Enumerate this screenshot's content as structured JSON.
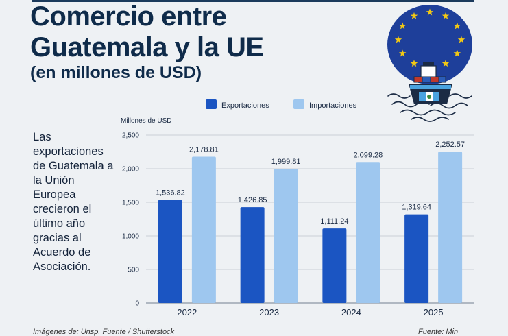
{
  "header": {
    "title_line1": "Comercio entre",
    "title_line2": "Guatemala y la UE",
    "subtitle": "(en millones de USD)"
  },
  "side_note": "Las exportaciones de Guatemala a la Unión Europea crecieron el último año gracias al Acuerdo de Asociación.",
  "footer": {
    "left": "Imágenes de: Unsp. Fuente / Shutterstock",
    "right": "Fuente: Min"
  },
  "illustration": {
    "icon": "eu-flag-stars-and-cargo-ship-icon",
    "star_color": "#f2c814",
    "sky_color": "#1e3f9a"
  },
  "colors": {
    "exportaciones": "#1b55c2",
    "importaciones": "#9ec7ef"
  },
  "chart_data": {
    "type": "bar",
    "title": "",
    "ylabel": "Millones de USD",
    "xlabel": "",
    "ylim": [
      0,
      2500
    ],
    "yticks": [
      "0",
      "500",
      "1,000",
      "1,500",
      "2,000",
      "2,500"
    ],
    "grid": true,
    "legend_position": "top",
    "categories": [
      "2022",
      "2023",
      "2024",
      "2025"
    ],
    "series": [
      {
        "name": "Exportaciones",
        "values": [
          1536.82,
          1426.85,
          1111.24,
          1319.64
        ],
        "labels": [
          "1,536.82",
          "1,426.85",
          "1,111.24",
          "1,319.64"
        ]
      },
      {
        "name": "Importaciones",
        "values": [
          2178.81,
          1999.81,
          2099.28,
          2252.57
        ],
        "labels": [
          "2,178.81",
          "1,999.81",
          "2,099.28",
          "2,252.57"
        ]
      }
    ]
  }
}
